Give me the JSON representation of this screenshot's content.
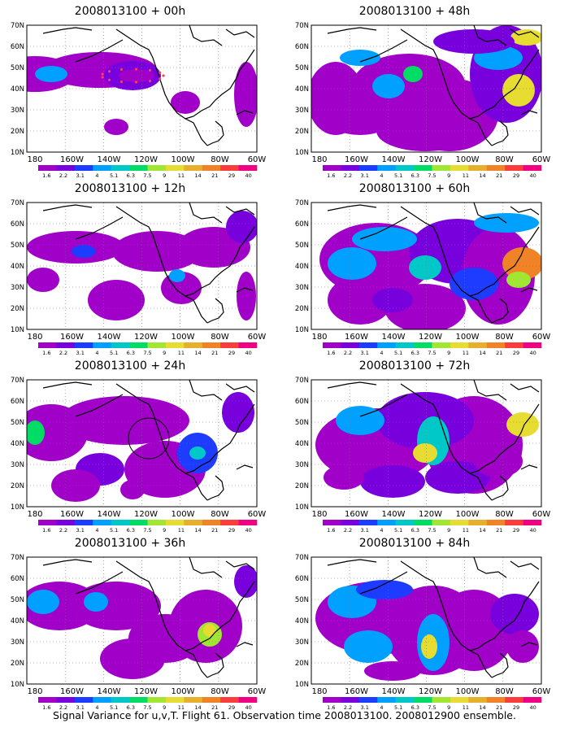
{
  "figure": {
    "caption": "Signal Variance for u,v,T. Flight 61. Observation time 2008013100. 2008012900 ensemble.",
    "lat_labels": [
      "70N",
      "60N",
      "50N",
      "40N",
      "30N",
      "20N",
      "10N"
    ],
    "lon_labels": [
      "180",
      "160W",
      "140W",
      "120W",
      "100W",
      "80W",
      "60W"
    ],
    "colorbar_levels": [
      "1.6",
      "2.2",
      "3.1",
      "4",
      "5.1",
      "6.3",
      "7.5",
      "9",
      "11",
      "14",
      "21",
      "29",
      "40"
    ],
    "colorbar_colors": [
      "#a000c8",
      "#7800dc",
      "#1e3cff",
      "#00a0ff",
      "#00c8c8",
      "#00dc64",
      "#a0e632",
      "#e6dc32",
      "#e6af2d",
      "#f08228",
      "#fa3c3c",
      "#f00082"
    ],
    "panels": [
      {
        "id": "p00",
        "title": "2008013100 + 00h"
      },
      {
        "id": "p48",
        "title": "2008013100 + 48h"
      },
      {
        "id": "p12",
        "title": "2008013100 + 12h"
      },
      {
        "id": "p60",
        "title": "2008013100 + 60h"
      },
      {
        "id": "p24",
        "title": "2008013100 + 24h"
      },
      {
        "id": "p72",
        "title": "2008013100 + 72h"
      },
      {
        "id": "p36",
        "title": "2008013100 + 36h"
      },
      {
        "id": "p84",
        "title": "2008013100 + 84h"
      }
    ]
  }
}
